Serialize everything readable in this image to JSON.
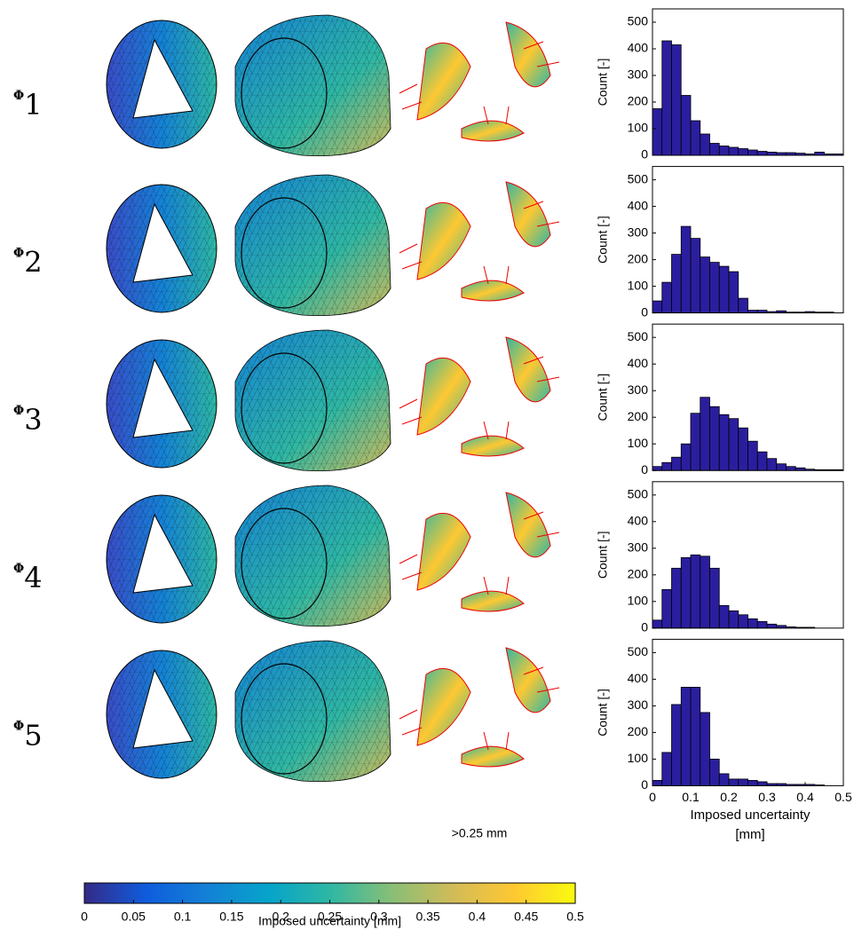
{
  "row_labels": [
    {
      "symbol": "Φ",
      "sub": "1"
    },
    {
      "symbol": "Φ",
      "sub": "2"
    },
    {
      "symbol": "Φ",
      "sub": "3"
    },
    {
      "symbol": "Φ",
      "sub": "4"
    },
    {
      "symbol": "Φ",
      "sub": "5"
    }
  ],
  "arrow_note": ">0.25 mm",
  "colorbar": {
    "label": "Imposed uncertainty [mm]",
    "lim": [
      0,
      0.5
    ],
    "ticks": [
      0,
      0.05,
      0.1,
      0.15,
      0.2,
      0.25,
      0.3,
      0.35,
      0.4,
      0.45,
      0.5
    ],
    "colors": [
      "#352a87",
      "#0f5cdd",
      "#1481d6",
      "#06a4ca",
      "#2eb7a4",
      "#87bf77",
      "#d1bb59",
      "#fec832",
      "#f9fb0e"
    ]
  },
  "chart_data": [
    {
      "type": "histogram",
      "ylabel": "Count [-]",
      "color": "#2b1e9e",
      "bins": [
        0,
        0.025,
        0.05,
        0.075,
        0.1,
        0.125,
        0.15,
        0.175,
        0.2,
        0.225,
        0.25,
        0.275,
        0.3,
        0.325,
        0.35,
        0.375,
        0.4,
        0.425,
        0.45,
        0.475,
        0.5
      ],
      "values": [
        175,
        430,
        415,
        225,
        130,
        80,
        45,
        35,
        30,
        25,
        20,
        15,
        12,
        10,
        10,
        8,
        5,
        12,
        5,
        5
      ],
      "xlim": [
        0,
        0.5
      ],
      "ylim": [
        0,
        550
      ],
      "yticks": [
        0,
        100,
        200,
        300,
        400,
        500
      ]
    },
    {
      "type": "histogram",
      "ylabel": "Count [-]",
      "color": "#2b1e9e",
      "bins": [
        0,
        0.025,
        0.05,
        0.075,
        0.1,
        0.125,
        0.15,
        0.175,
        0.2,
        0.225,
        0.25,
        0.275,
        0.3,
        0.325,
        0.35,
        0.375,
        0.4,
        0.425,
        0.45,
        0.475,
        0.5
      ],
      "values": [
        45,
        115,
        220,
        325,
        280,
        210,
        190,
        175,
        155,
        55,
        10,
        10,
        5,
        8,
        3,
        3,
        5,
        3,
        3,
        0
      ],
      "xlim": [
        0,
        0.5
      ],
      "ylim": [
        0,
        550
      ],
      "yticks": [
        0,
        100,
        200,
        300,
        400,
        500
      ]
    },
    {
      "type": "histogram",
      "ylabel": "Count [-]",
      "color": "#2b1e9e",
      "bins": [
        0,
        0.025,
        0.05,
        0.075,
        0.1,
        0.125,
        0.15,
        0.175,
        0.2,
        0.225,
        0.25,
        0.275,
        0.3,
        0.325,
        0.35,
        0.375,
        0.4,
        0.425,
        0.45,
        0.475,
        0.5
      ],
      "values": [
        15,
        30,
        50,
        100,
        215,
        275,
        240,
        210,
        195,
        160,
        110,
        70,
        45,
        25,
        15,
        10,
        5,
        3,
        3,
        3
      ],
      "xlim": [
        0,
        0.5
      ],
      "ylim": [
        0,
        550
      ],
      "yticks": [
        0,
        100,
        200,
        300,
        400,
        500
      ]
    },
    {
      "type": "histogram",
      "ylabel": "Count [-]",
      "color": "#2b1e9e",
      "bins": [
        0,
        0.025,
        0.05,
        0.075,
        0.1,
        0.125,
        0.15,
        0.175,
        0.2,
        0.225,
        0.25,
        0.275,
        0.3,
        0.325,
        0.35,
        0.375,
        0.4,
        0.425,
        0.45,
        0.475,
        0.5
      ],
      "values": [
        30,
        145,
        225,
        265,
        275,
        270,
        225,
        85,
        65,
        50,
        35,
        25,
        15,
        10,
        5,
        3,
        3,
        0,
        0,
        0
      ],
      "xlim": [
        0,
        0.5
      ],
      "ylim": [
        0,
        550
      ],
      "yticks": [
        0,
        100,
        200,
        300,
        400,
        500
      ]
    },
    {
      "type": "histogram",
      "ylabel": "Count [-]",
      "color": "#2b1e9e",
      "xlabel": "Imposed uncertainty [mm]",
      "bins": [
        0,
        0.025,
        0.05,
        0.075,
        0.1,
        0.125,
        0.15,
        0.175,
        0.2,
        0.225,
        0.25,
        0.275,
        0.3,
        0.325,
        0.35,
        0.375,
        0.4,
        0.425,
        0.45,
        0.475,
        0.5
      ],
      "values": [
        20,
        125,
        305,
        370,
        370,
        275,
        100,
        45,
        25,
        25,
        20,
        15,
        8,
        8,
        5,
        5,
        5,
        3,
        0,
        0
      ],
      "xlim": [
        0,
        0.5
      ],
      "ylim": [
        0,
        550
      ],
      "yticks": [
        0,
        100,
        200,
        300,
        400,
        500
      ],
      "xticks": [
        0,
        0.1,
        0.2,
        0.3,
        0.4,
        0.5
      ]
    }
  ]
}
